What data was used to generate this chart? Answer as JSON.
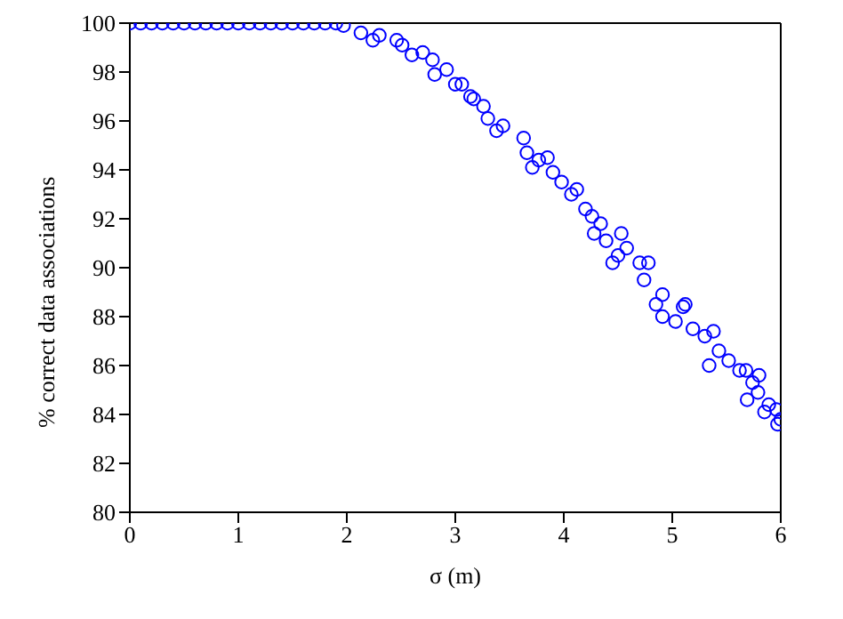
{
  "chart_data": {
    "type": "scatter",
    "xlabel": "σ (m)",
    "ylabel": "% correct data associations",
    "marker": "circle",
    "xlim": [
      0,
      6
    ],
    "xticks": [
      0,
      1,
      2,
      3,
      4,
      5,
      6
    ],
    "ylim": [
      80,
      100
    ],
    "yticks": [
      80,
      82,
      84,
      86,
      88,
      90,
      92,
      94,
      96,
      98,
      100
    ],
    "series": [
      {
        "color": "#0000ff",
        "x": [
          0,
          0.1,
          0.2,
          0.3,
          0.4,
          0.5,
          0.6,
          0.7,
          0.8,
          0.9,
          1.0,
          1.1,
          1.2,
          1.3,
          1.4,
          1.5,
          1.6,
          1.7,
          1.8,
          1.9,
          1.97,
          2.13,
          2.24,
          2.3,
          2.46,
          2.51,
          2.6,
          2.7,
          2.79,
          2.81,
          2.92,
          3.0,
          3.06,
          3.14,
          3.17,
          3.26,
          3.3,
          3.38,
          3.44,
          3.63,
          3.66,
          3.71,
          3.77,
          3.85,
          3.9,
          3.98,
          4.07,
          4.12,
          4.2,
          4.26,
          4.28,
          4.34,
          4.39,
          4.45,
          4.5,
          4.53,
          4.58,
          4.7,
          4.74,
          4.78,
          4.85,
          4.91,
          4.91,
          5.03,
          5.1,
          5.12,
          5.19,
          5.3,
          5.34,
          5.38,
          5.43,
          5.52,
          5.62,
          5.68,
          5.69,
          5.74,
          5.79,
          5.8,
          5.85,
          5.89,
          5.96,
          5.97,
          6.0
        ],
        "values": [
          100,
          100,
          100,
          100,
          100,
          100,
          100,
          100,
          100,
          100,
          100,
          100,
          100,
          100,
          100,
          100,
          100,
          100,
          100,
          100,
          99.9,
          99.6,
          99.3,
          99.5,
          99.3,
          99.1,
          98.7,
          98.8,
          98.5,
          97.9,
          98.1,
          97.5,
          97.5,
          97.0,
          96.9,
          96.6,
          96.1,
          95.6,
          95.8,
          95.3,
          94.7,
          94.1,
          94.4,
          94.5,
          93.9,
          93.5,
          93.0,
          93.2,
          92.4,
          92.1,
          91.4,
          91.8,
          91.1,
          90.2,
          90.5,
          91.4,
          90.8,
          90.2,
          89.5,
          90.2,
          88.5,
          88.9,
          88.0,
          87.8,
          88.4,
          88.5,
          87.5,
          87.2,
          86.0,
          87.4,
          86.6,
          86.2,
          85.8,
          85.8,
          84.6,
          85.3,
          84.9,
          85.6,
          84.1,
          84.4,
          84.2,
          83.6,
          83.8
        ]
      }
    ]
  }
}
